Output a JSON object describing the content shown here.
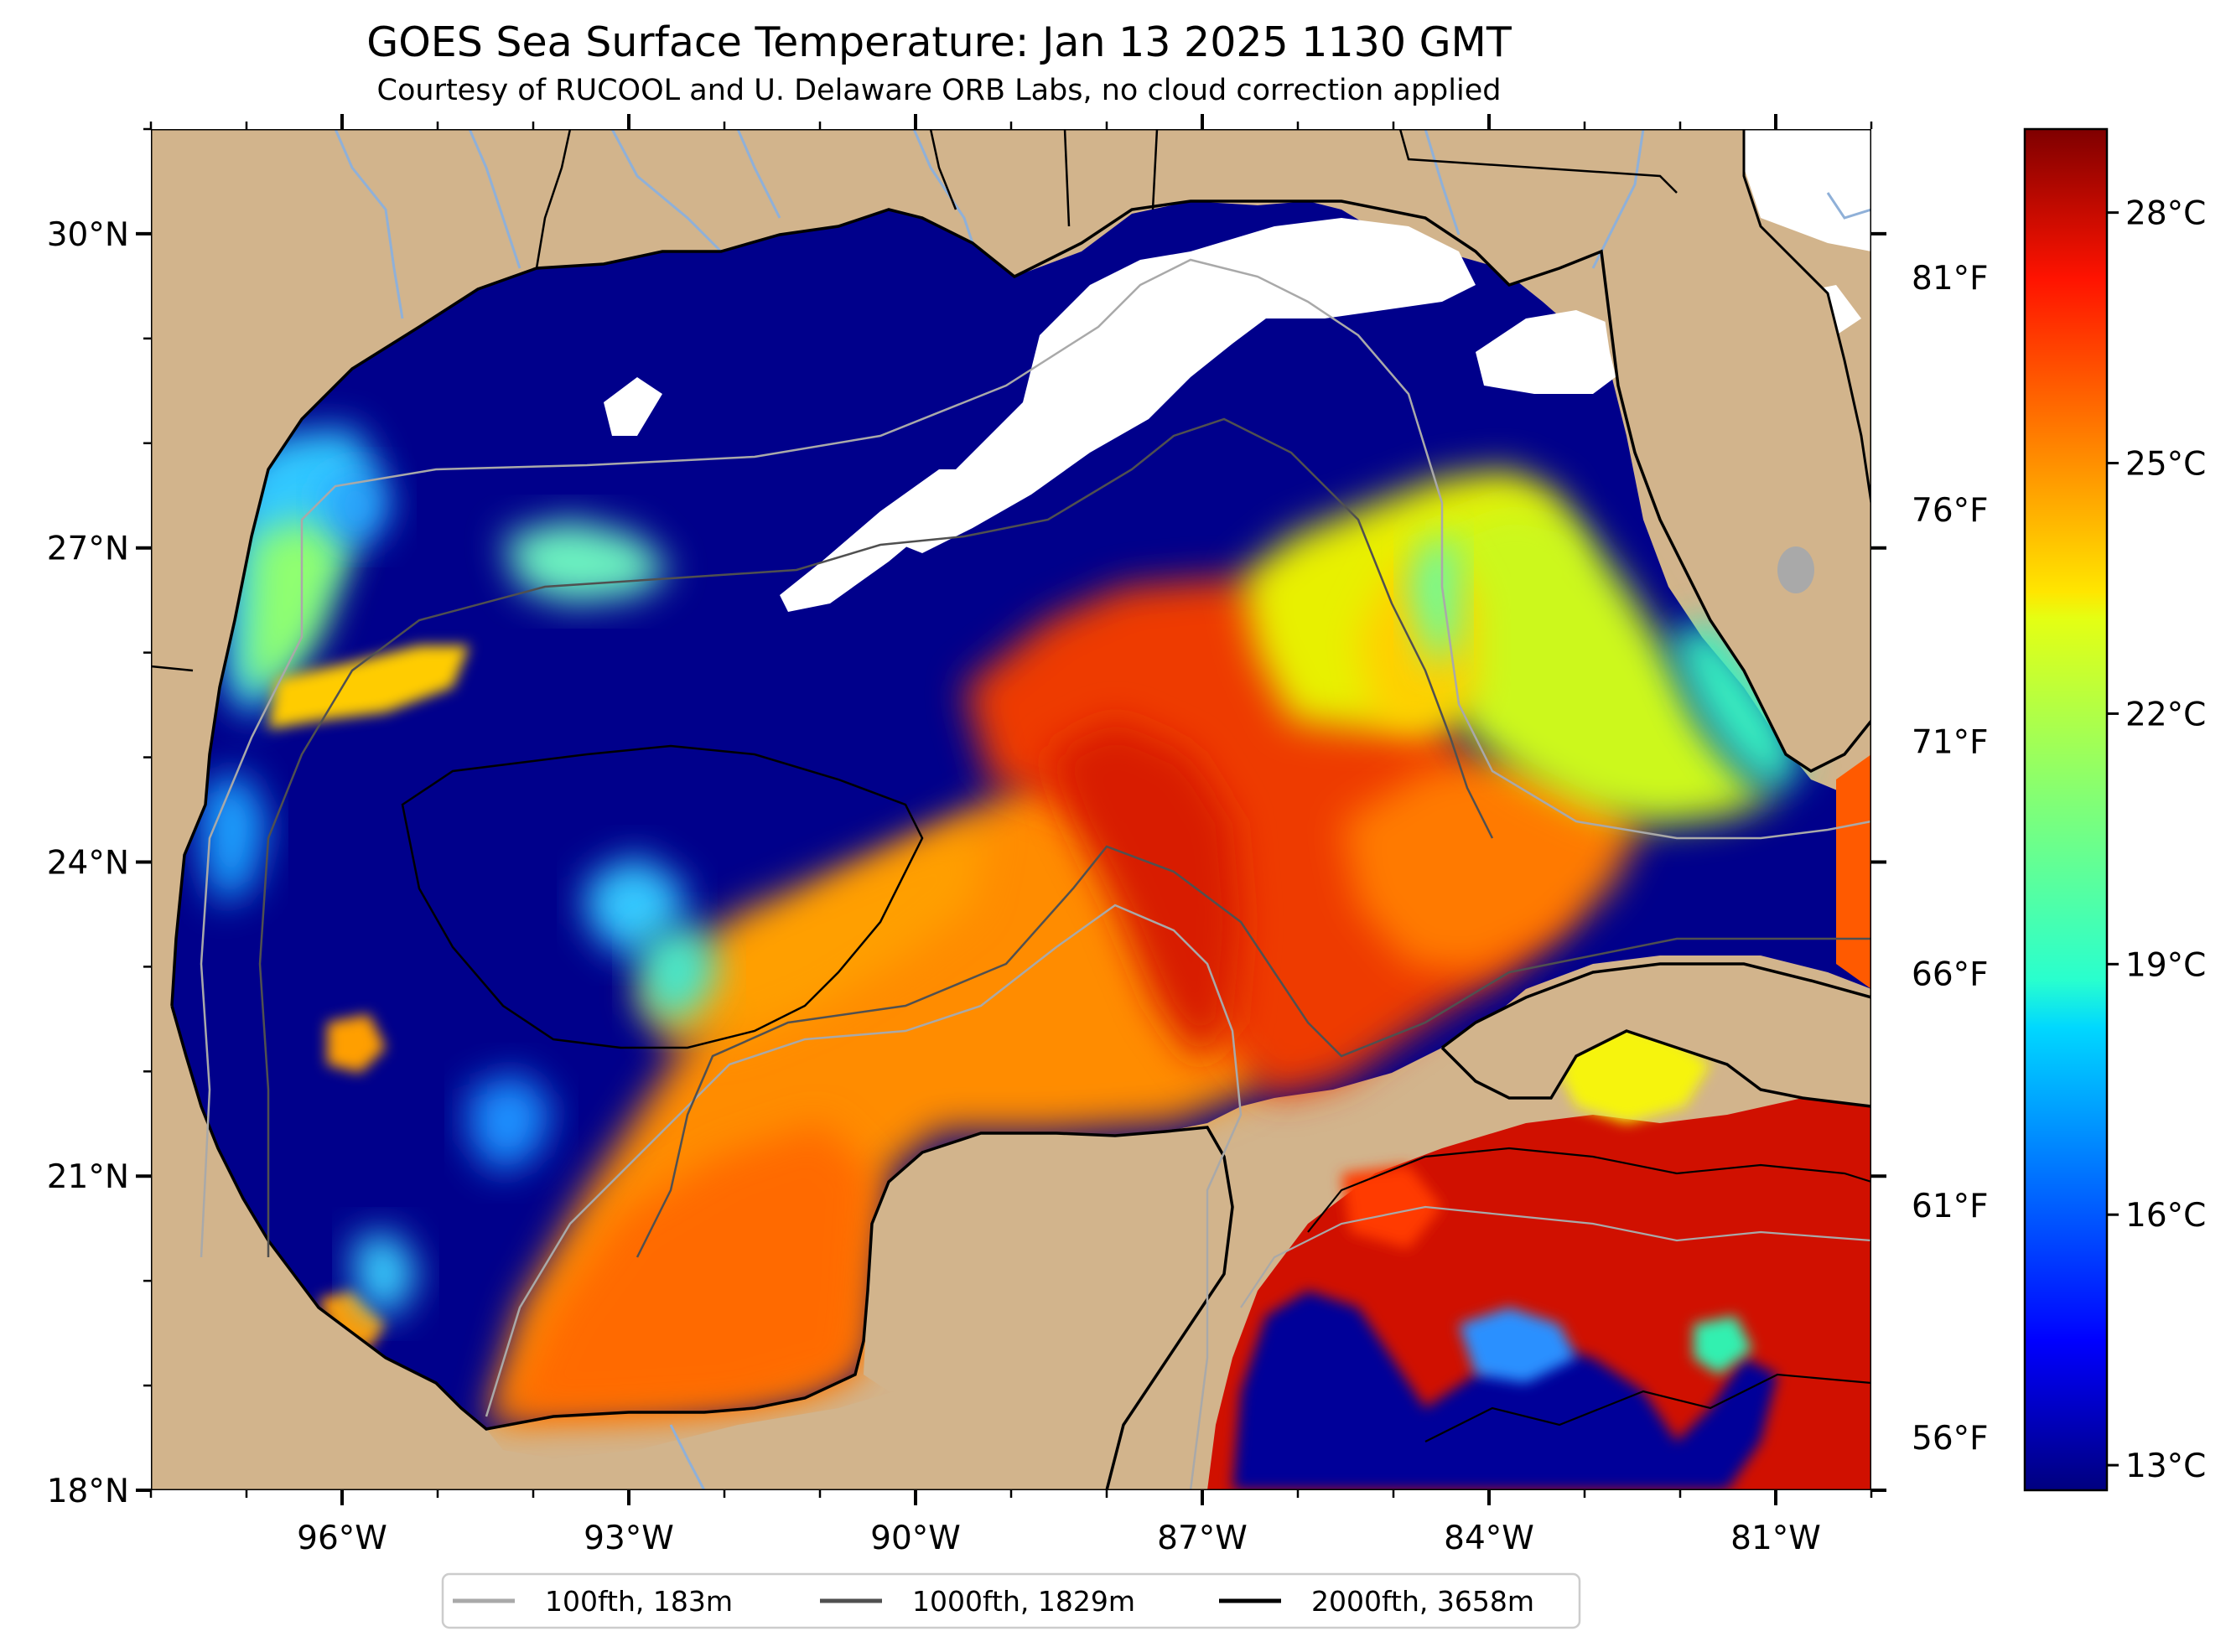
{
  "title": "GOES Sea Surface Temperature: Jan 13 2025 1130 GMT",
  "subtitle": "Courtesy of RUCOOL and U. Delaware ORB Labs, no cloud correction applied",
  "map": {
    "lat_labels": [
      {
        "label": "30°N",
        "value": 30
      },
      {
        "label": "27°N",
        "value": 27
      },
      {
        "label": "24°N",
        "value": 24
      },
      {
        "label": "21°N",
        "value": 21
      },
      {
        "label": "18°N",
        "value": 18
      }
    ],
    "lon_labels": [
      {
        "label": "96°W",
        "value": -96
      },
      {
        "label": "93°W",
        "value": -93
      },
      {
        "label": "90°W",
        "value": -90
      },
      {
        "label": "87°W",
        "value": -87
      },
      {
        "label": "84°W",
        "value": -84
      },
      {
        "label": "81°W",
        "value": -81
      }
    ],
    "lon_range": [
      -98,
      -80
    ],
    "lat_range": [
      18,
      31
    ]
  },
  "fahrenheit_labels": [
    {
      "label": "81°F",
      "value": 81
    },
    {
      "label": "76°F",
      "value": 76
    },
    {
      "label": "71°F",
      "value": 71
    },
    {
      "label": "66°F",
      "value": 66
    },
    {
      "label": "61°F",
      "value": 61
    },
    {
      "label": "56°F",
      "value": 56
    }
  ],
  "colorbar": {
    "range_c": [
      12.7,
      29.0
    ],
    "colormap": "jet",
    "ticks": [
      {
        "label": "28°C",
        "value": 28
      },
      {
        "label": "25°C",
        "value": 25
      },
      {
        "label": "22°C",
        "value": 22
      },
      {
        "label": "19°C",
        "value": 19
      },
      {
        "label": "16°C",
        "value": 16
      },
      {
        "label": "13°C",
        "value": 13
      }
    ]
  },
  "legend": {
    "items": [
      {
        "label": "100fth, 183m",
        "color": "#a9a9a9"
      },
      {
        "label": "1000fth, 1829m",
        "color": "#505050"
      },
      {
        "label": "2000fth, 3658m",
        "color": "#000000"
      }
    ]
  },
  "colors": {
    "land": "#d2b48c",
    "cold_water": "#00008b",
    "cloud": "#ffffff",
    "river": "#8fb0d8"
  }
}
